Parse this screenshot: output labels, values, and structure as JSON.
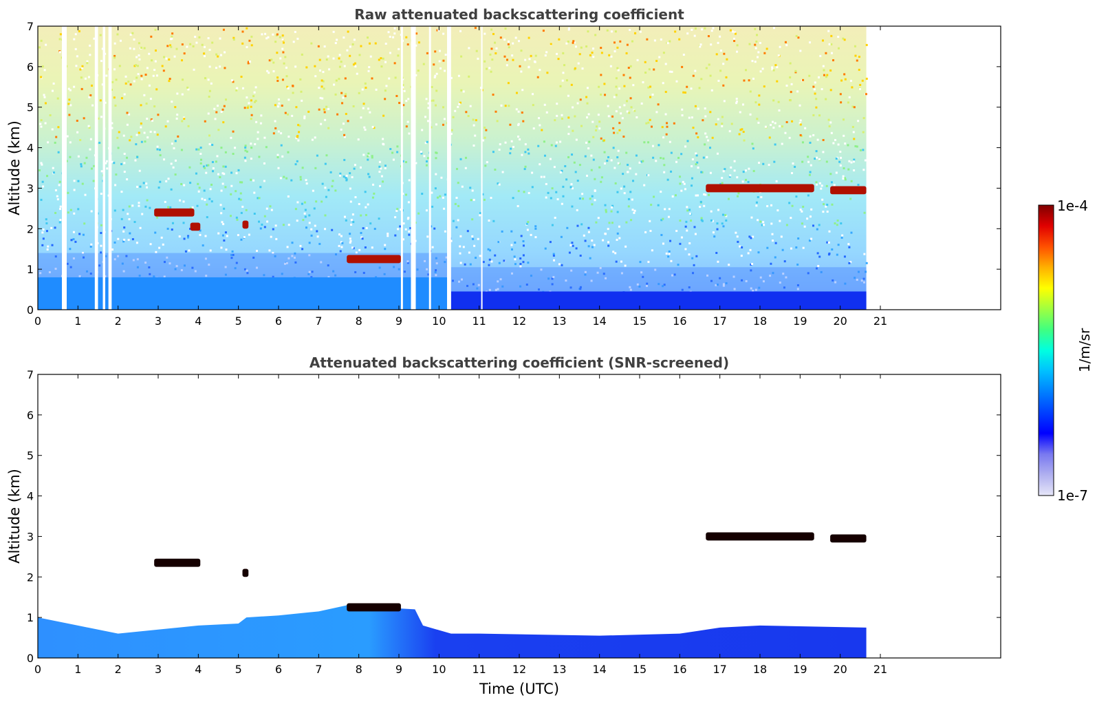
{
  "chart_data": [
    {
      "type": "heatmap",
      "title": "Raw attenuated backscattering coefficient",
      "xlabel": "",
      "ylabel": "Altitude (km)",
      "xlim": [
        0,
        24
      ],
      "ylim": [
        0,
        7
      ],
      "x_ticks": [
        "0",
        "1",
        "2",
        "3",
        "4",
        "5",
        "6",
        "7",
        "8",
        "9",
        "10",
        "11",
        "12",
        "13",
        "14",
        "15",
        "16",
        "17",
        "18",
        "19",
        "20",
        "21"
      ],
      "y_ticks": [
        "0",
        "1",
        "2",
        "3",
        "4",
        "5",
        "6",
        "7"
      ],
      "data_extent_hours": [
        0,
        20.65
      ],
      "missing_gaps_hours": [
        [
          0.6,
          0.72
        ],
        [
          1.42,
          1.5
        ],
        [
          1.62,
          1.68
        ],
        [
          1.76,
          1.84
        ],
        [
          9.05,
          9.1
        ],
        [
          9.3,
          9.42
        ],
        [
          9.75,
          9.8
        ],
        [
          10.2,
          10.3
        ],
        [
          11.05,
          11.08
        ]
      ],
      "features": [
        {
          "kind": "boundary_layer",
          "t_start": 0,
          "t_end": 10.3,
          "top_km": 0.8
        },
        {
          "kind": "boundary_layer",
          "t_start": 10.3,
          "t_end": 20.65,
          "top_km": 0.45
        },
        {
          "kind": "cloud_layer",
          "t_start": 2.9,
          "t_end": 3.9,
          "alt_km": 2.4
        },
        {
          "kind": "cloud_layer",
          "t_start": 3.8,
          "t_end": 4.05,
          "alt_km": 2.05
        },
        {
          "kind": "cloud_layer",
          "t_start": 5.1,
          "t_end": 5.25,
          "alt_km": 2.1
        },
        {
          "kind": "cloud_layer",
          "t_start": 7.7,
          "t_end": 9.05,
          "alt_km": 1.25
        },
        {
          "kind": "cloud_layer",
          "t_start": 16.65,
          "t_end": 19.35,
          "alt_km": 3.0
        },
        {
          "kind": "cloud_layer",
          "t_start": 19.75,
          "t_end": 20.65,
          "alt_km": 2.95
        }
      ]
    },
    {
      "type": "heatmap",
      "title": "Attenuated backscattering coefficient (SNR-screened)",
      "xlabel": "Time (UTC)",
      "ylabel": "Altitude (km)",
      "xlim": [
        0,
        24
      ],
      "ylim": [
        0,
        7
      ],
      "x_ticks": [
        "0",
        "1",
        "2",
        "3",
        "4",
        "5",
        "6",
        "7",
        "8",
        "9",
        "10",
        "11",
        "12",
        "13",
        "14",
        "15",
        "16",
        "17",
        "18",
        "19",
        "20",
        "21"
      ],
      "y_ticks": [
        "0",
        "1",
        "2",
        "3",
        "4",
        "5",
        "6",
        "7"
      ],
      "data_extent_hours": [
        0,
        20.65
      ],
      "boundary_layer_top_km": [
        [
          0,
          1.0
        ],
        [
          1.0,
          0.8
        ],
        [
          2.0,
          0.6
        ],
        [
          3.0,
          0.7
        ],
        [
          4.0,
          0.8
        ],
        [
          5.0,
          0.85
        ],
        [
          5.2,
          1.0
        ],
        [
          6.0,
          1.05
        ],
        [
          7.0,
          1.15
        ],
        [
          7.7,
          1.3
        ],
        [
          8.5,
          1.25
        ],
        [
          9.4,
          1.2
        ],
        [
          9.6,
          0.8
        ],
        [
          10.3,
          0.6
        ],
        [
          11.0,
          0.6
        ],
        [
          14.0,
          0.55
        ],
        [
          16.0,
          0.6
        ],
        [
          17.0,
          0.75
        ],
        [
          18.0,
          0.8
        ],
        [
          20.65,
          0.75
        ]
      ],
      "features": [
        {
          "kind": "cloud_layer",
          "t_start": 2.9,
          "t_end": 4.05,
          "alt_km": 2.35
        },
        {
          "kind": "cloud_layer",
          "t_start": 5.1,
          "t_end": 5.25,
          "alt_km": 2.1
        },
        {
          "kind": "cloud_layer",
          "t_start": 7.7,
          "t_end": 9.05,
          "alt_km": 1.25
        },
        {
          "kind": "cloud_layer",
          "t_start": 16.65,
          "t_end": 19.35,
          "alt_km": 3.0
        },
        {
          "kind": "cloud_layer",
          "t_start": 19.75,
          "t_end": 20.65,
          "alt_km": 2.95
        }
      ]
    }
  ],
  "colorbar": {
    "label": "1/m/sr",
    "min_label": "1e-7",
    "max_label": "1e-4",
    "scale": "log",
    "colors": [
      "#e6e6f8",
      "#b0b0f0",
      "#7878f0",
      "#0000ff",
      "#0040ff",
      "#0080ff",
      "#00c0ff",
      "#00ffe0",
      "#40ff80",
      "#a0ff40",
      "#ffff00",
      "#ffb000",
      "#ff5000",
      "#e00000",
      "#800000"
    ]
  }
}
